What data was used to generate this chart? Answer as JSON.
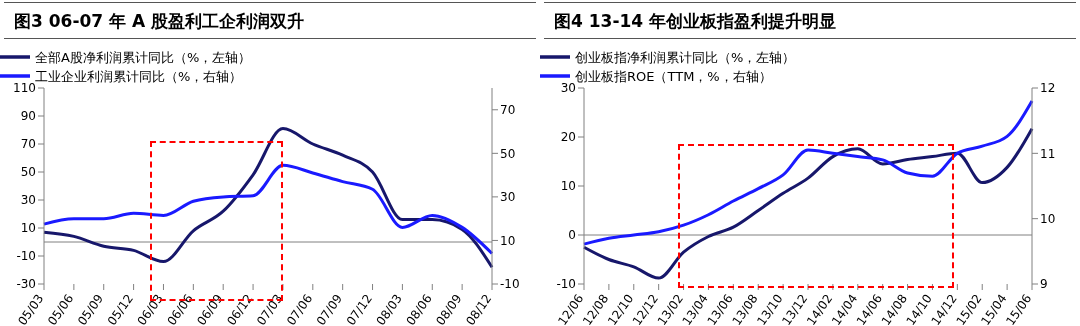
{
  "chart_data": [
    {
      "type": "line",
      "title": "图3  06-07 年 A 股盈利工企利润双升",
      "categories": [
        "05/03",
        "05/06",
        "05/09",
        "05/12",
        "06/03",
        "06/06",
        "06/09",
        "06/12",
        "07/03",
        "07/06",
        "07/09",
        "07/12",
        "08/03",
        "08/06",
        "08/09",
        "08/12"
      ],
      "series": [
        {
          "name": "全部A股净利润累计同比（%，左轴）",
          "color": "#17176b",
          "values": [
            7,
            4,
            -3,
            -6,
            -14,
            8,
            22,
            48,
            81,
            70,
            62,
            50,
            16,
            16,
            9,
            -18
          ]
        },
        {
          "name": "工业企业利润累计同比（%，右轴）",
          "color": "#1a1aff",
          "axis": "y2",
          "values": [
            17.5,
            20,
            20,
            22.5,
            21.5,
            28,
            30,
            30.5,
            44.5,
            41,
            37,
            33.5,
            16,
            21.5,
            16,
            4
          ]
        }
      ],
      "ylim": [
        -30,
        110
      ],
      "yticks": [
        -30,
        -10,
        10,
        30,
        50,
        70,
        90,
        110
      ],
      "y2lim": [
        -10,
        80
      ],
      "y2ticks": [
        -10,
        10,
        30,
        50,
        70
      ],
      "ref_lines": [
        {
          "axis": "y",
          "value": 0,
          "color": "#808080"
        }
      ],
      "legend": "top",
      "grid": false,
      "marker": "none",
      "line_style": "solid"
    },
    {
      "type": "line",
      "title": "图4  13-14 年创业板指盈利提升明显",
      "categories": [
        "12/06",
        "12/08",
        "12/10",
        "12/12",
        "13/02",
        "13/04",
        "13/06",
        "13/08",
        "13/10",
        "13/12",
        "14/02",
        "14/04",
        "14/06",
        "14/08",
        "14/10",
        "14/12",
        "15/02",
        "15/04",
        "15/06"
      ],
      "series": [
        {
          "name": "创业板指净利润累计同比（%，左轴）",
          "color": "#17176b",
          "values": [
            -2.5,
            -5,
            -6.5,
            -8.8,
            -3.5,
            -0.3,
            1.6,
            5,
            8.5,
            11.6,
            16,
            17.6,
            14.5,
            15.4,
            16,
            16.7,
            10.7,
            13.8,
            21.7
          ]
        },
        {
          "name": "创业板指ROE（TTM，%，右轴）",
          "color": "#1a1aff",
          "axis": "y2",
          "values": [
            9.61,
            9.7,
            9.75,
            9.8,
            9.9,
            10.06,
            10.27,
            10.46,
            10.67,
            11.05,
            11,
            10.95,
            10.9,
            10.7,
            10.65,
            11,
            11.11,
            11.26,
            11.8
          ]
        }
      ],
      "ylim": [
        -10,
        30
      ],
      "yticks": [
        -10,
        0,
        10,
        20,
        30
      ],
      "y2lim": [
        9,
        12
      ],
      "y2ticks": [
        9,
        10,
        11,
        12
      ],
      "ref_lines": [
        {
          "axis": "y",
          "value": 0,
          "color": "#808080"
        }
      ],
      "legend": "top",
      "grid": false,
      "marker": "none",
      "line_style": "solid"
    }
  ]
}
